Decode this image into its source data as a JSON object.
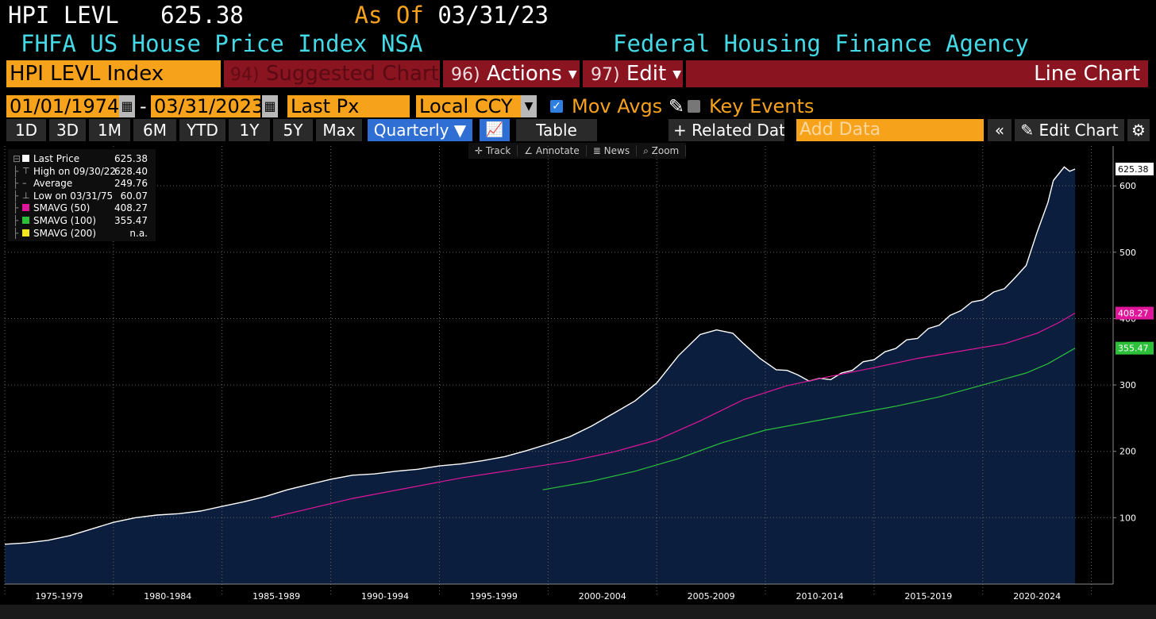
{
  "header": {
    "ticker": "HPI LEVL",
    "last": "625.38",
    "as_of_label": "As Of",
    "as_of_date": "03/31/23",
    "name": "FHFA US House Price Index NSA",
    "source": "Federal Housing Finance Agency"
  },
  "toolbar": {
    "security": "HPI LEVL Index",
    "suggested_fn": "94)",
    "suggested": "Suggested Charts",
    "actions_fn": "96)",
    "actions": "Actions",
    "edit_fn": "97)",
    "edit": "Edit",
    "chart_type": "Line Chart",
    "start_date": "01/01/1974",
    "end_date": "03/31/2023",
    "field": "Last Px",
    "currency": "Local CCY",
    "mov_avgs": "Mov Avgs",
    "key_events": "Key Events",
    "periods": [
      "1D",
      "3D",
      "1M",
      "6M",
      "YTD",
      "1Y",
      "5Y",
      "Max"
    ],
    "frequency": "Quarterly",
    "table": "Table",
    "related": "+ Related Data",
    "add_data_placeholder": "Add Data",
    "edit_chart": "Edit Chart",
    "sub_tools": [
      "Track",
      "Annotate",
      "News",
      "Zoom"
    ]
  },
  "legend": [
    {
      "name": "Last Price",
      "value": "625.38",
      "color": "#ffffff"
    },
    {
      "name": "High on 09/30/22",
      "value": "628.40",
      "color": ""
    },
    {
      "name": "Average",
      "value": "249.76",
      "color": ""
    },
    {
      "name": "Low on 03/31/75",
      "value": "60.07",
      "color": ""
    },
    {
      "name": "SMAVG (50)",
      "value": "408.27",
      "color": "#e0169a"
    },
    {
      "name": "SMAVG (100)",
      "value": "355.47",
      "color": "#2bbf3a"
    },
    {
      "name": "SMAVG (200)",
      "value": "n.a.",
      "color": "#f2e61c"
    }
  ],
  "chart_data": {
    "type": "area",
    "x_tick_labels": [
      "1975-1979",
      "1980-1984",
      "1985-1989",
      "1990-1994",
      "1995-1999",
      "2000-2004",
      "2005-2009",
      "2010-2014",
      "2015-2019",
      "2020-2024"
    ],
    "y_ticks": [
      100,
      200,
      300,
      400,
      500,
      600
    ],
    "ylim": [
      0,
      660
    ],
    "xlim": [
      1974.0,
      2025.0
    ],
    "grid": true,
    "last_value_labels": [
      {
        "series": "Last Price",
        "value": "625.38",
        "color": "#ffffff"
      },
      {
        "series": "SMAVG (50)",
        "value": "408.27",
        "color": "#e0169a"
      },
      {
        "series": "SMAVG (100)",
        "value": "355.47",
        "color": "#2bbf3a"
      }
    ],
    "series": [
      {
        "name": "Last Price",
        "color": "#ffffff",
        "fill": "#0c1e3e",
        "points": [
          [
            1974.0,
            60
          ],
          [
            1975.0,
            62
          ],
          [
            1976.0,
            66
          ],
          [
            1977.0,
            73
          ],
          [
            1978.0,
            83
          ],
          [
            1979.0,
            93
          ],
          [
            1980.0,
            100
          ],
          [
            1981.0,
            104
          ],
          [
            1982.0,
            106
          ],
          [
            1983.0,
            110
          ],
          [
            1984.0,
            117
          ],
          [
            1985.0,
            124
          ],
          [
            1986.0,
            132
          ],
          [
            1987.0,
            142
          ],
          [
            1988.0,
            150
          ],
          [
            1989.0,
            158
          ],
          [
            1990.0,
            164
          ],
          [
            1991.0,
            166
          ],
          [
            1992.0,
            170
          ],
          [
            1993.0,
            173
          ],
          [
            1994.0,
            178
          ],
          [
            1995.0,
            181
          ],
          [
            1996.0,
            186
          ],
          [
            1997.0,
            192
          ],
          [
            1998.0,
            201
          ],
          [
            1999.0,
            211
          ],
          [
            2000.0,
            222
          ],
          [
            2001.0,
            238
          ],
          [
            2002.0,
            257
          ],
          [
            2003.0,
            276
          ],
          [
            2004.0,
            303
          ],
          [
            2005.0,
            344
          ],
          [
            2006.0,
            376
          ],
          [
            2006.75,
            383
          ],
          [
            2007.5,
            378
          ],
          [
            2008.0,
            362
          ],
          [
            2008.75,
            340
          ],
          [
            2009.5,
            323
          ],
          [
            2010.0,
            322
          ],
          [
            2010.5,
            315
          ],
          [
            2011.0,
            306
          ],
          [
            2011.5,
            310
          ],
          [
            2012.0,
            308
          ],
          [
            2012.5,
            318
          ],
          [
            2013.0,
            322
          ],
          [
            2013.5,
            335
          ],
          [
            2014.0,
            338
          ],
          [
            2014.5,
            350
          ],
          [
            2015.0,
            355
          ],
          [
            2015.5,
            368
          ],
          [
            2016.0,
            370
          ],
          [
            2016.5,
            385
          ],
          [
            2017.0,
            390
          ],
          [
            2017.5,
            405
          ],
          [
            2018.0,
            412
          ],
          [
            2018.5,
            425
          ],
          [
            2019.0,
            428
          ],
          [
            2019.5,
            440
          ],
          [
            2020.0,
            445
          ],
          [
            2020.5,
            462
          ],
          [
            2021.0,
            480
          ],
          [
            2021.5,
            530
          ],
          [
            2022.0,
            575
          ],
          [
            2022.25,
            608
          ],
          [
            2022.75,
            628.4
          ],
          [
            2023.0,
            622
          ],
          [
            2023.25,
            625.38
          ]
        ]
      },
      {
        "name": "SMAVG (50)",
        "color": "#e0169a",
        "points": [
          [
            1986.25,
            100
          ],
          [
            1990.0,
            129
          ],
          [
            1995.0,
            160
          ],
          [
            2000.0,
            185
          ],
          [
            2002.0,
            199
          ],
          [
            2004.0,
            217
          ],
          [
            2006.0,
            246
          ],
          [
            2008.0,
            278
          ],
          [
            2010.0,
            299
          ],
          [
            2012.0,
            313
          ],
          [
            2014.0,
            326
          ],
          [
            2016.0,
            340
          ],
          [
            2018.0,
            351
          ],
          [
            2020.0,
            362
          ],
          [
            2021.5,
            378
          ],
          [
            2022.5,
            394
          ],
          [
            2023.25,
            408.27
          ]
        ]
      },
      {
        "name": "SMAVG (100)",
        "color": "#2bbf3a",
        "points": [
          [
            1998.75,
            142
          ],
          [
            2001.0,
            155
          ],
          [
            2003.0,
            170
          ],
          [
            2005.0,
            189
          ],
          [
            2007.0,
            213
          ],
          [
            2009.0,
            232
          ],
          [
            2011.0,
            244
          ],
          [
            2013.0,
            256
          ],
          [
            2015.0,
            268
          ],
          [
            2017.0,
            282
          ],
          [
            2019.0,
            300
          ],
          [
            2021.0,
            318
          ],
          [
            2022.0,
            332
          ],
          [
            2023.25,
            355.47
          ]
        ]
      }
    ]
  }
}
